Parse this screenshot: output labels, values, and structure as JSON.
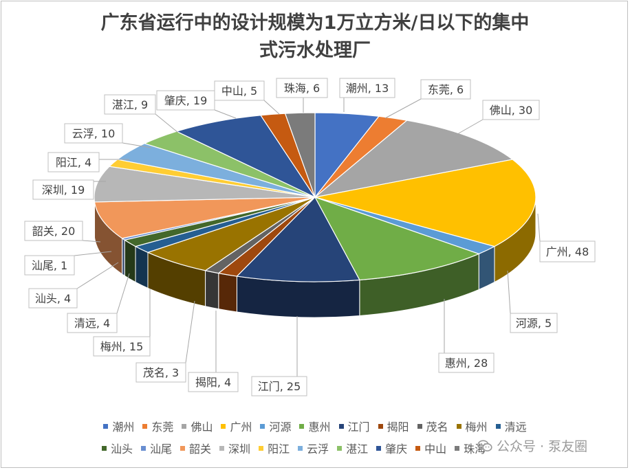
{
  "chart_data": {
    "type": "pie",
    "title_lines": [
      "广东省运行中的设计规模为1万立方米/日以下的集中",
      "式污水处理厂"
    ],
    "slices": [
      {
        "name": "潮州",
        "value": 13,
        "label": "潮州, 13",
        "color": "#4472C4"
      },
      {
        "name": "东莞",
        "value": 6,
        "label": "东莞, 6",
        "color": "#ED7D31"
      },
      {
        "name": "佛山",
        "value": 30,
        "label": "佛山, 30",
        "color": "#A5A5A5"
      },
      {
        "name": "广州",
        "value": 48,
        "label": "广州, 48",
        "color": "#FFC000"
      },
      {
        "name": "河源",
        "value": 5,
        "label": "河源, 5",
        "color": "#5B9BD5"
      },
      {
        "name": "惠州",
        "value": 28,
        "label": "惠州, 28",
        "color": "#70AD47"
      },
      {
        "name": "江门",
        "value": 25,
        "label": "江门, 25",
        "color": "#264478"
      },
      {
        "name": "揭阳",
        "value": 4,
        "label": "揭阳, 4",
        "color": "#9E480E"
      },
      {
        "name": "茂名",
        "value": 3,
        "label": "茂名, 3",
        "color": "#636363"
      },
      {
        "name": "梅州",
        "value": 15,
        "label": "梅州, 15",
        "color": "#997300"
      },
      {
        "name": "清远",
        "value": 4,
        "label": "清远, 4",
        "color": "#255E91"
      },
      {
        "name": "汕头",
        "value": 4,
        "label": "汕头, 4",
        "color": "#43682B"
      },
      {
        "name": "汕尾",
        "value": 1,
        "label": "汕尾, 1",
        "color": "#698ED0"
      },
      {
        "name": "韶关",
        "value": 20,
        "label": "韶关, 20",
        "color": "#F1975A"
      },
      {
        "name": "深圳",
        "value": 19,
        "label": "深圳, 19",
        "color": "#B7B7B7"
      },
      {
        "name": "阳江",
        "value": 4,
        "label": "阳江, 4",
        "color": "#FFCD33"
      },
      {
        "name": "云浮",
        "value": 10,
        "label": "云浮, 10",
        "color": "#7CAFDD"
      },
      {
        "name": "湛江",
        "value": 9,
        "label": "湛江, 9",
        "color": "#8CC168"
      },
      {
        "name": "肇庆",
        "value": 19,
        "label": "肇庆, 19",
        "color": "#2F5597"
      },
      {
        "name": "中山",
        "value": 5,
        "label": "中山, 5",
        "color": "#C55A11"
      },
      {
        "name": "珠海",
        "value": 6,
        "label": "珠海, 6",
        "color": "#7B7B7B"
      }
    ],
    "legend_rows": [
      [
        "潮州",
        "东莞",
        "佛山",
        "广州",
        "河源",
        "惠州",
        "江门",
        "揭阳",
        "茂名",
        "梅州",
        "清远"
      ],
      [
        "汕头",
        "汕尾",
        "韶关",
        "深圳",
        "阳江",
        "云浮",
        "湛江",
        "肇庆",
        "中山",
        "珠海"
      ]
    ],
    "legend_position": "bottom",
    "style": "3d-pie"
  },
  "watermark": {
    "text": "公众号 · 泵友圈",
    "icon": "wechat-icon"
  }
}
